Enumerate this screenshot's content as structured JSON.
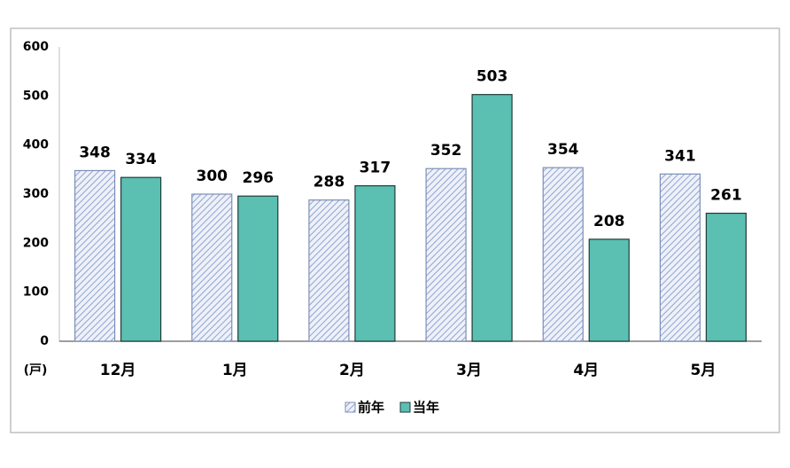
{
  "chart_data": {
    "type": "bar",
    "unit_label": "(戸)",
    "categories": [
      "12月",
      "1月",
      "2月",
      "3月",
      "4月",
      "5月"
    ],
    "series": [
      {
        "name": "前年",
        "color": "#8fa4d2",
        "values": [
          348,
          300,
          288,
          352,
          354,
          341
        ]
      },
      {
        "name": "当年",
        "color": "#5bbfb2",
        "values": [
          334,
          296,
          317,
          503,
          208,
          261
        ]
      }
    ],
    "ylim": [
      0,
      600
    ],
    "yticks": [
      0,
      100,
      200,
      300,
      400,
      500,
      600
    ],
    "grid": false,
    "legend": "bottom"
  }
}
